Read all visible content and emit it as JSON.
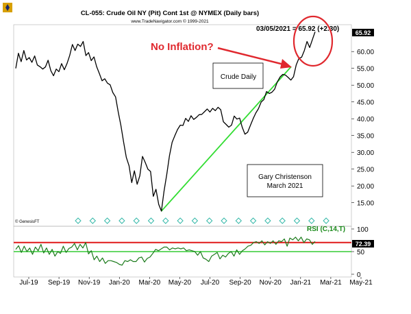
{
  "header": {
    "title": "CL-055:  Crude Oil NY (Pit) Cont 1st @ NYMEX  (Daily bars)",
    "copyright": "www.TradeNavigator.com © 1999-2021",
    "price_readout": "03/05/2021 = 65.92 (+2.30)",
    "watermark": "© GenesisFT"
  },
  "annotations": {
    "no_inflation": "No Inflation?",
    "crude_daily": "Crude Daily",
    "author": "Gary Christenson",
    "date": "March 2021"
  },
  "colors": {
    "price_line": "#000000",
    "trend_line": "#33dd33",
    "rsi_line": "#1a7a1a",
    "rsi_overbought": "#e01818",
    "rsi_oversold": "#33cc33",
    "callout": "#e0282e",
    "diamond": "#33b8a8"
  },
  "chart_data": [
    {
      "type": "line",
      "title": "CL-055:  Crude Oil NY (Pit) Cont 1st @ NYMEX  (Daily bars)",
      "ylim": [
        8,
        68
      ],
      "y_ticks": [
        "60.00",
        "55.00",
        "50.00",
        "45.00",
        "40.00",
        "35.00",
        "30.00",
        "25.00",
        "20.00",
        "15.00"
      ],
      "y_tick_values": [
        60,
        55,
        50,
        45,
        40,
        35,
        30,
        25,
        20,
        15
      ],
      "x_ticks": [
        "Jul-19",
        "Sep-19",
        "Nov-19",
        "Jan-20",
        "Mar-20",
        "May-20",
        "Jul-20",
        "Sep-20",
        "Nov-20",
        "Jan-21",
        "Mar-21",
        "May-21"
      ],
      "last_value_label": "65.92",
      "series": [
        {
          "values": [
            55.0,
            59.5,
            57.0,
            60.3,
            57.5,
            58.2,
            56.8,
            58.7,
            56.0,
            55.5,
            54.8,
            55.4,
            57.4,
            54.3,
            52.8,
            54.8,
            54.0,
            56.4,
            54.6,
            56.4,
            58.8,
            62.1,
            60.3,
            62.2,
            61.5,
            63.0,
            58.8,
            59.7,
            57.3,
            58.4,
            55.5,
            53.5,
            51.3,
            51.9,
            50.6,
            50.1,
            47.8,
            46.5,
            42.0,
            38.0,
            33.0,
            28.5,
            26.0,
            21.0,
            24.5,
            20.5,
            23.0,
            28.8,
            27.0,
            25.0,
            24.3,
            16.9,
            19.0,
            14.5,
            12.5,
            18.5,
            23.5,
            29.0,
            33.0,
            35.0,
            36.8,
            38.1,
            38.0,
            40.1,
            39.2,
            40.9,
            39.8,
            40.4,
            41.2,
            41.3,
            42.1,
            42.9,
            42.0,
            43.1,
            42.4,
            43.4,
            42.7,
            39.1,
            38.3,
            37.5,
            38.1,
            40.8,
            39.9,
            40.2,
            37.4,
            35.4,
            36.0,
            38.0,
            40.0,
            41.7,
            43.0,
            45.0,
            45.7,
            48.1,
            47.5,
            47.9,
            48.8,
            51.0,
            52.4,
            53.2,
            53.0,
            52.3,
            51.5,
            52.5,
            56.0,
            58.0,
            58.3,
            60.3,
            63.0,
            61.2,
            63.6,
            65.9
          ]
        }
      ],
      "trend_line": {
        "from": {
          "x": "Apr-20",
          "y": 12.5
        },
        "to": {
          "x": "Feb-21",
          "y": 55.5
        }
      },
      "marker_row": {
        "count": 18,
        "style": "diamond"
      }
    },
    {
      "type": "line",
      "title": "RSI (C,14,T)",
      "ylim": [
        0,
        100
      ],
      "y_ticks": [
        "100",
        "50",
        "0"
      ],
      "y_tick_values": [
        100,
        50,
        0
      ],
      "last_value_label": "72.39",
      "reference_lines": [
        70,
        50
      ],
      "series": [
        {
          "name": "RSI (C,14,T)",
          "values": [
            55,
            63,
            48,
            62,
            50,
            58,
            44,
            60,
            52,
            66,
            47,
            58,
            44,
            55,
            40,
            50,
            46,
            62,
            48,
            57,
            60,
            68,
            54,
            66,
            58,
            70,
            45,
            52,
            32,
            40,
            28,
            36,
            24,
            30,
            30,
            28,
            26,
            22,
            20,
            30,
            28,
            32,
            28,
            28,
            36,
            38,
            27,
            35,
            38,
            46,
            55,
            52,
            56,
            60,
            60,
            54,
            58,
            56,
            58,
            56,
            58,
            52,
            54,
            52,
            50,
            42,
            50,
            36,
            33,
            28,
            40,
            44,
            48,
            34,
            42,
            38,
            46,
            50,
            40,
            54,
            44,
            52,
            56,
            62,
            64,
            70,
            72,
            68,
            74,
            65,
            72,
            68,
            74,
            66,
            74,
            72,
            78,
            62,
            80,
            76,
            82,
            74,
            82,
            70,
            78,
            76,
            66,
            72.4
          ]
        }
      ]
    }
  ]
}
